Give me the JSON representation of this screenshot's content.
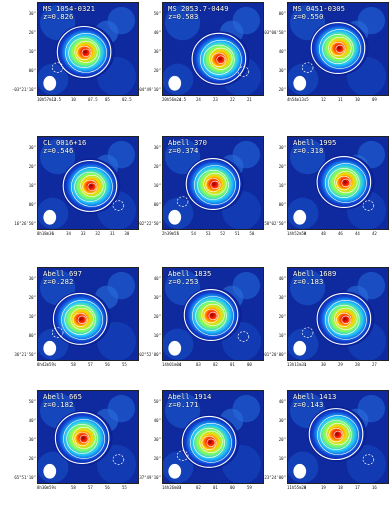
{
  "panels": [
    {
      "name": "MS 1054-0321",
      "z": "z=0.826",
      "yticks": [
        "30\"",
        "20\"",
        "10\"",
        "00\"",
        "-03°21'10\""
      ],
      "xticks": [
        "10h57m12.5",
        "s",
        "10",
        "07.5",
        "05",
        "02.5"
      ]
    },
    {
      "name": "MS 2053.7-0449",
      "z": "z=0.583",
      "yticks": [
        "50\"",
        "40\"",
        "30\"",
        "20\"",
        "-04°49'10\""
      ],
      "xticks": [
        "20h56m24.5",
        "s",
        "24",
        "23",
        "22",
        "21"
      ]
    },
    {
      "name": "MS 0451-0305",
      "z": "z=0.550",
      "yticks": [
        "00\"",
        "-03°00'50\"",
        "40\"",
        "30\"",
        "20\""
      ],
      "xticks": [
        "4h54m13.5",
        "s",
        "12",
        "11",
        "10",
        "09"
      ]
    },
    {
      "name": "CL 0016+16",
      "z": "z=0.546",
      "yticks": [
        "30\"",
        "20\"",
        "10\"",
        "00\"",
        "16°26'50\""
      ],
      "xticks": [
        "0h18m36",
        "s",
        "34",
        "33",
        "32",
        "31",
        "30"
      ]
    },
    {
      "name": "Abell 370",
      "z": "z=0.374",
      "yticks": [
        "30\"",
        "20\"",
        "10\"",
        "00\"",
        "-02°22'50\""
      ],
      "xticks": [
        "2h39m55",
        "s",
        "54",
        "53",
        "52",
        "51",
        "50"
      ]
    },
    {
      "name": "Abell 1995",
      "z": "z=0.318",
      "yticks": [
        "30\"",
        "20\"",
        "10\"",
        "00\"",
        "58°02'50\""
      ],
      "xticks": [
        "14h52m50",
        "s",
        "48",
        "46",
        "44",
        "42"
      ]
    },
    {
      "name": "Abell 697",
      "z": "z=0.282",
      "yticks": [
        "30\"",
        "20\"",
        "10\"",
        "00\"",
        "36°21'50\""
      ],
      "xticks": [
        "8h42m59",
        "s",
        "58",
        "57",
        "56",
        "55"
      ]
    },
    {
      "name": "Abell 1835",
      "z": "z=0.253",
      "yticks": [
        "40\"",
        "30\"",
        "20\"",
        "10\"",
        "02°52'00\""
      ],
      "xticks": [
        "14h01m04",
        "s",
        "03",
        "02",
        "01",
        "00"
      ]
    },
    {
      "name": "Abell 1689",
      "z": "z=0.183",
      "yticks": [
        "40\"",
        "30\"",
        "20\"",
        "10\"",
        "-01°20'00\""
      ],
      "xticks": [
        "13h11m31",
        "s",
        "30",
        "29",
        "28",
        "27"
      ]
    },
    {
      "name": "Abell 665",
      "z": "z=0.182",
      "yticks": [
        "50\"",
        "40\"",
        "30\"",
        "20\"",
        "65°51'10\""
      ],
      "xticks": [
        "8h30m59",
        "s",
        "58",
        "57",
        "56",
        "55"
      ]
    },
    {
      "name": "Abell 1914",
      "z": "z=0.171",
      "yticks": [
        "50\"",
        "40\"",
        "30\"",
        "20\"",
        "37°49'10\""
      ],
      "xticks": [
        "14h26m03",
        "s",
        "02",
        "01",
        "00",
        "59"
      ]
    },
    {
      "name": "Abell 1413",
      "z": "z=0.143",
      "yticks": [
        "40\"",
        "30\"",
        "20\"",
        "10\"",
        "23°24'00\""
      ],
      "xticks": [
        "11h55m20",
        "s",
        "19",
        "18",
        "17",
        "16"
      ]
    }
  ]
}
